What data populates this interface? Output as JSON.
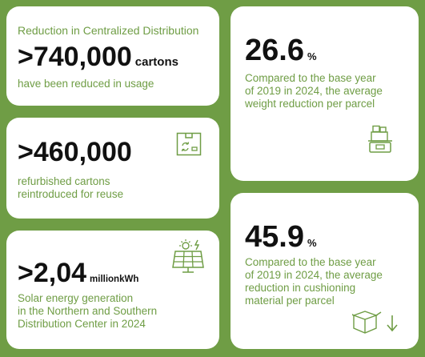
{
  "cards": [
    {
      "heading": "Reduction in Centralized Distribution",
      "value": ">740,000",
      "unit": "cartons",
      "desc": "have been reduced in usage"
    },
    {
      "value": ">460,000",
      "desc_line1": "refurbished cartons",
      "desc_line2": "reintroduced for reuse",
      "icon": "recycle-box-icon"
    },
    {
      "value": ">2,04",
      "unit": "millionkWh",
      "desc_line1": "Solar energy generation",
      "desc_line2": "in the Northern and Southern",
      "desc_line3": "Distribution Center in 2024",
      "icon": "solar-panel-icon"
    },
    {
      "value": "26.6",
      "unit": "%",
      "desc_line1": "Compared to the base year",
      "desc_line2": "of 2019 in 2024, the average",
      "desc_line3": "weight reduction per parcel",
      "icon": "scale-icon"
    },
    {
      "value": "45.9",
      "unit": "%",
      "desc_line1": "Compared to the base year",
      "desc_line2": "of 2019 in 2024, the average",
      "desc_line3": "reduction in cushioning",
      "desc_line4": "material per parcel",
      "icon": "box-down-arrow-icon"
    }
  ],
  "colors": {
    "background": "#6f9d45",
    "accent": "#6f9d45",
    "card": "#ffffff",
    "text": "#111111"
  }
}
